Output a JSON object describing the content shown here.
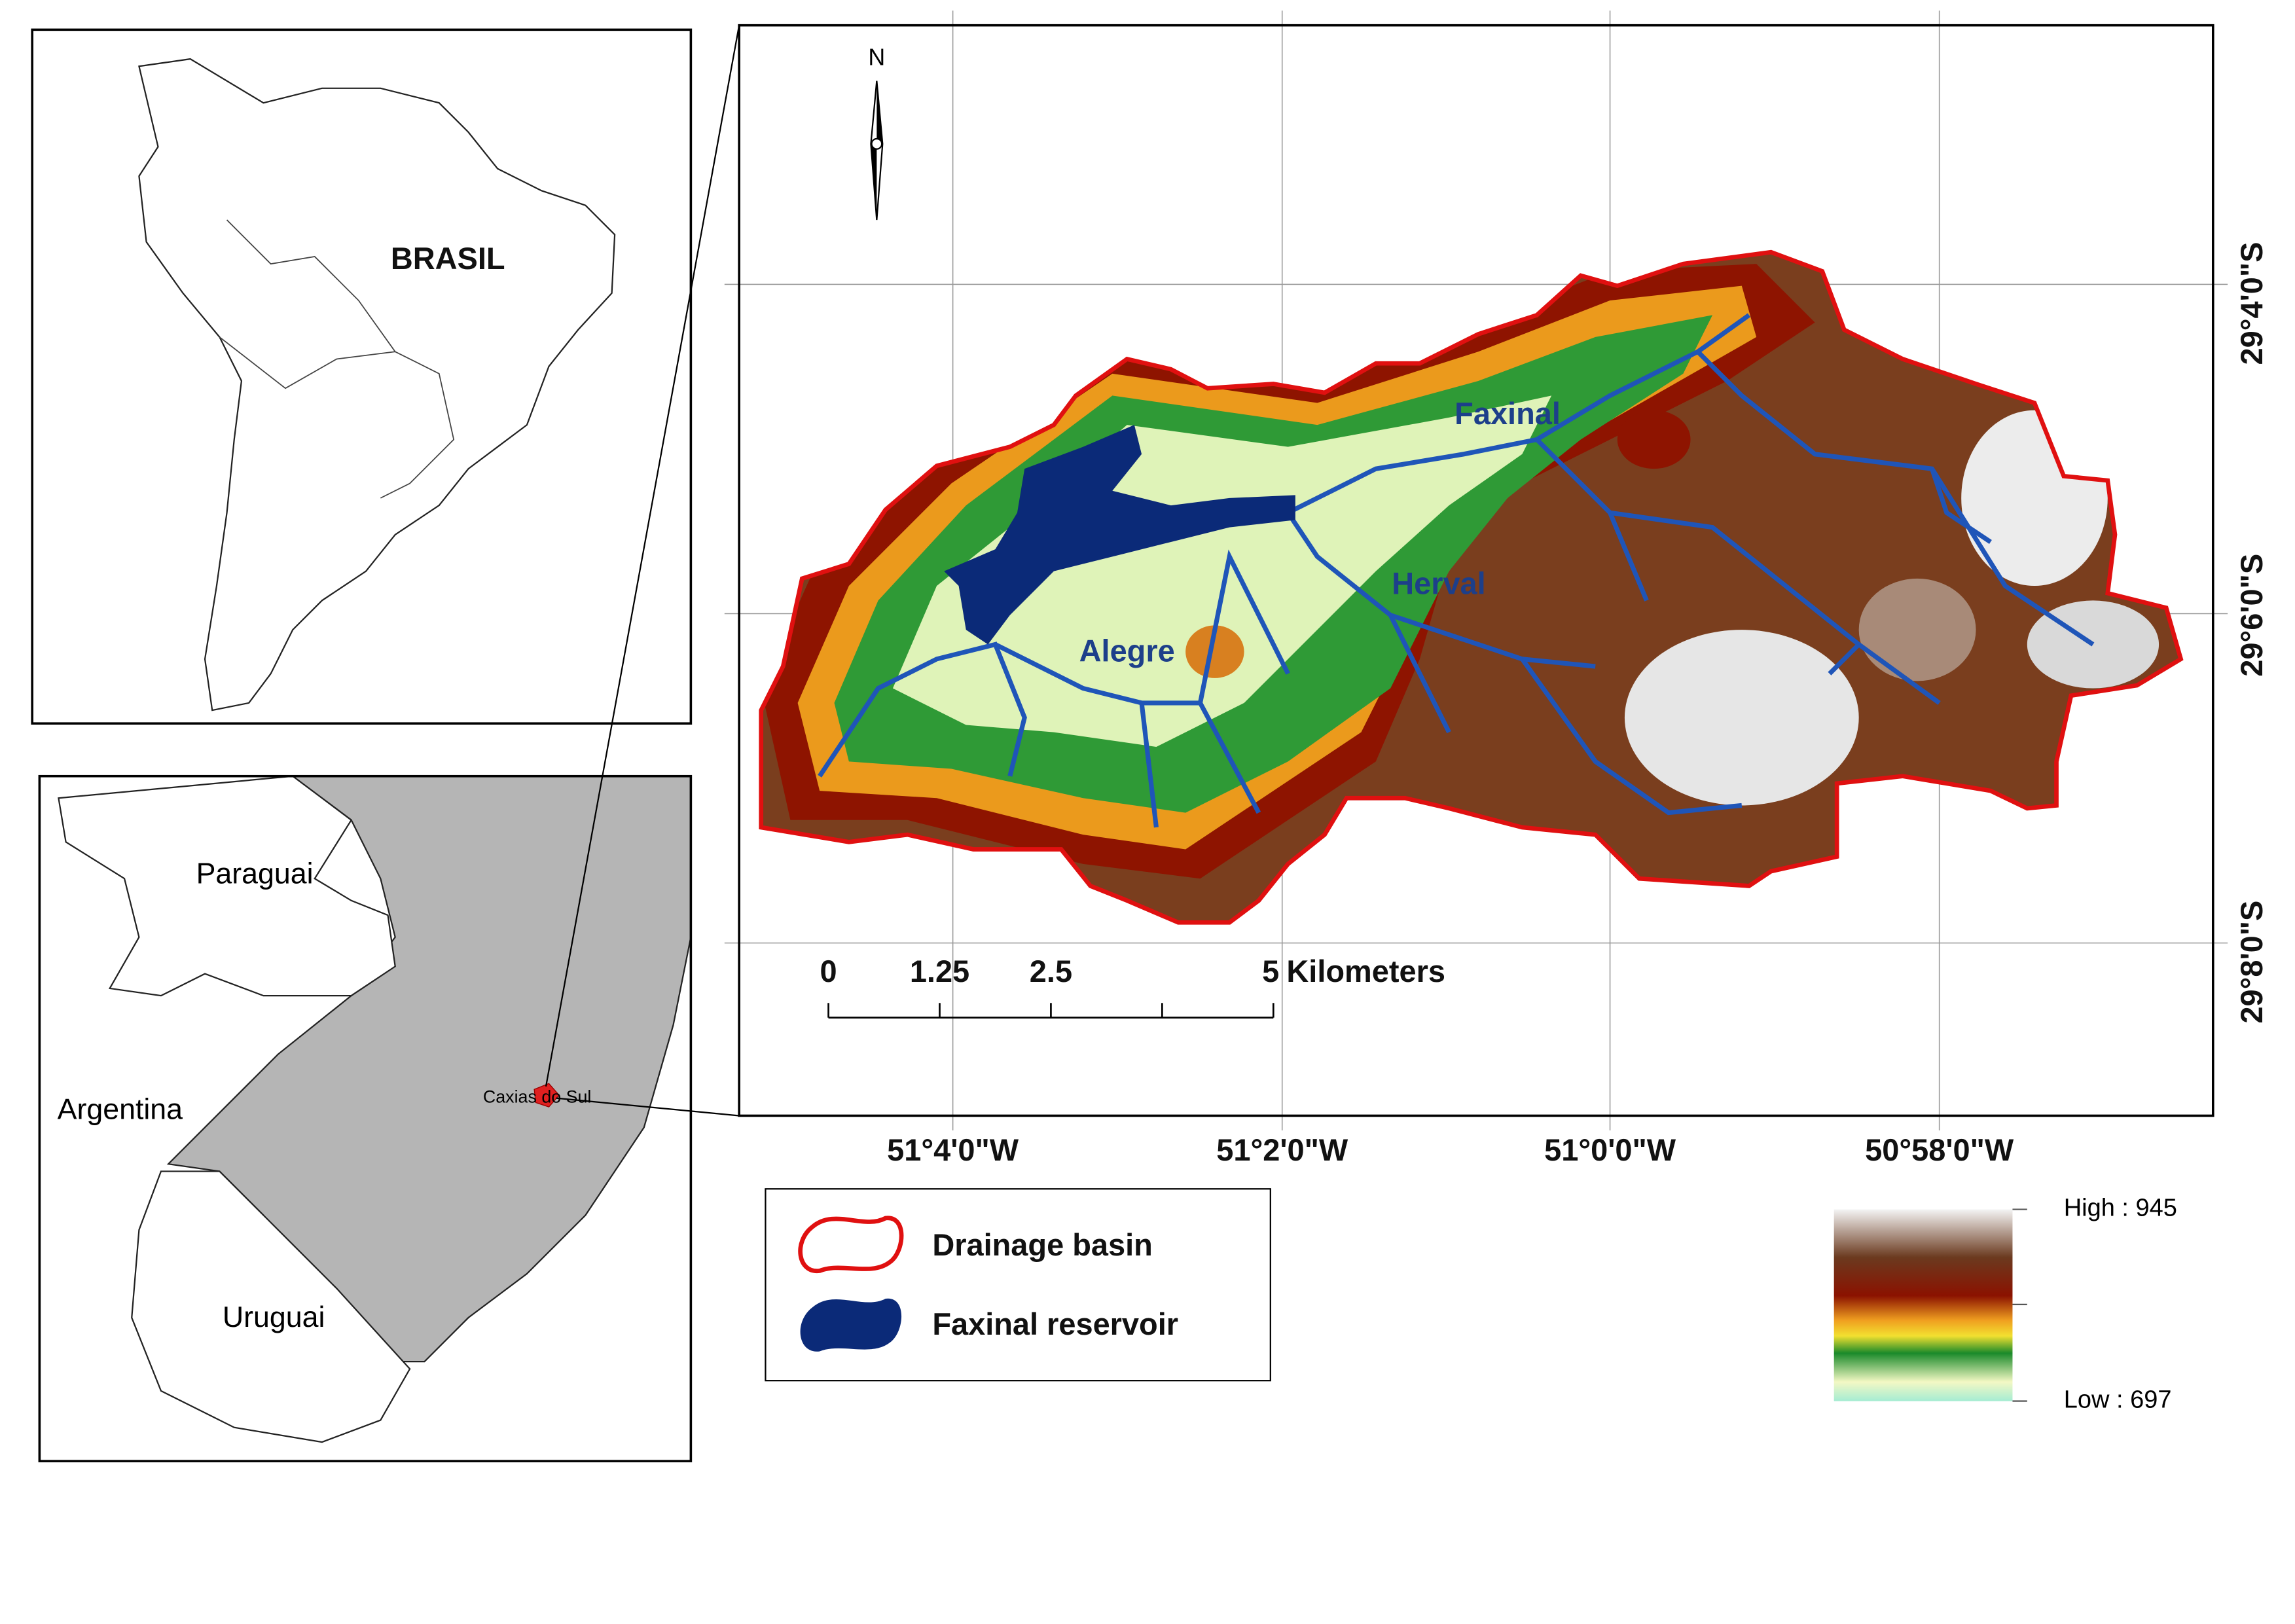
{
  "inset_south_america": {
    "label": "BRASIL"
  },
  "inset_region": {
    "labels": [
      "Paraguai",
      "Argentina",
      "Uruguai"
    ],
    "city": "Caxias do Sul"
  },
  "map": {
    "north": "N",
    "places": [
      "Faxinal",
      "Herval",
      "Alegre"
    ],
    "longitude_labels": [
      "51°4'0\"W",
      "51°2'0\"W",
      "51°0'0\"W",
      "50°58'0\"W"
    ],
    "latitude_labels": [
      "29°4'0\"S",
      "29°6'0\"S",
      "29°8'0\"S"
    ],
    "scale_bar": {
      "ticks": [
        0,
        1.25,
        2.5,
        5
      ],
      "unit": "Kilometers"
    }
  },
  "legend": {
    "items": [
      "Drainage basin",
      "Faxinal reservoir"
    ]
  },
  "elevation": {
    "high": "High : 945",
    "low": "Low : 697"
  }
}
